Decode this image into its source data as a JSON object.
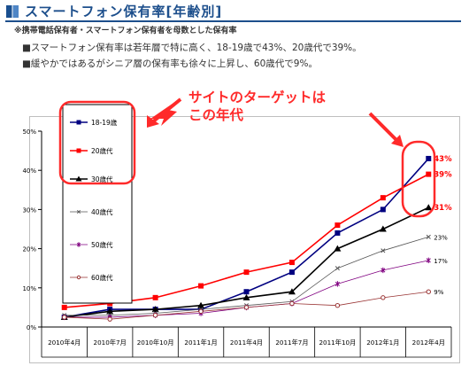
{
  "header": {
    "title": "スマートフォン保有率[年齢別]",
    "subtitle": "※携帯電話保有者・スマートフォン保有者を母数とした保有率",
    "bullets": [
      "■スマートフォン保有率は若年層で特に高く、18-19歳で43%、20歳代で39%。",
      "■緩やかではあるがシニア層の保有率も徐々に上昇し、60歳代で9%。"
    ]
  },
  "annotation": {
    "callout_line1": "サイトのターゲットは",
    "callout_line2": "この年代",
    "color": "#ff2a2a"
  },
  "chart_data": {
    "type": "line",
    "categories": [
      "2010年4月",
      "2010年7月",
      "2010年10月",
      "2011年1月",
      "2011年4月",
      "2011年7月",
      "2011年10月",
      "2012年1月",
      "2012年4月"
    ],
    "ylim": [
      0,
      50
    ],
    "yticks": [
      "0%",
      "10%",
      "20%",
      "30%",
      "40%",
      "50%"
    ],
    "ytick_values": [
      0,
      10,
      20,
      30,
      40,
      50
    ],
    "grid": "none",
    "legend_placement": "top-left",
    "series": [
      {
        "name": "18-19歳",
        "color": "#000080",
        "marker": "square",
        "values": [
          2.5,
          4.5,
          4.5,
          4.5,
          9,
          14,
          24,
          30,
          43
        ],
        "end_label": "43%"
      },
      {
        "name": "20歳代",
        "color": "#ff0000",
        "marker": "square",
        "values": [
          5,
          6,
          7.5,
          10.5,
          14,
          16.5,
          26,
          33,
          39
        ],
        "end_label": "39%"
      },
      {
        "name": "30歳代",
        "color": "#000000",
        "marker": "triangle",
        "values": [
          2.5,
          4,
          4.5,
          5.5,
          7.5,
          9,
          20,
          25,
          30.5
        ],
        "end_label": "31%"
      },
      {
        "name": "40歳代",
        "color": "#555555",
        "marker": "cross",
        "values": [
          3,
          3,
          3.5,
          4.5,
          5.5,
          6.5,
          15,
          19.5,
          23
        ],
        "end_label": "23%"
      },
      {
        "name": "50歳代",
        "color": "#800080",
        "marker": "star",
        "values": [
          2.5,
          2.5,
          3,
          3.5,
          5,
          6,
          11,
          14.5,
          17
        ],
        "end_label": "17%"
      },
      {
        "name": "60歳代",
        "color": "#993333",
        "marker": "circle",
        "values": [
          2.5,
          2,
          3,
          4,
          5,
          6,
          5.5,
          7.5,
          9
        ],
        "end_label": "9%"
      }
    ]
  }
}
